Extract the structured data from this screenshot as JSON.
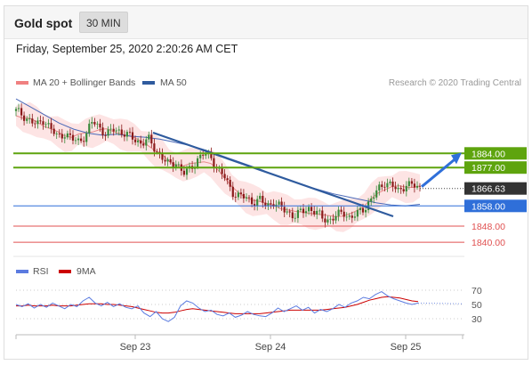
{
  "header": {
    "title": "Gold spot",
    "timeframe": "30 MIN",
    "timestamp": "Friday, September 25, 2020 2:20:26 AM CET"
  },
  "legend": {
    "items": [
      {
        "label": "MA 20 + Bollinger Bands",
        "color": "#f08080"
      },
      {
        "label": "MA 50",
        "color": "#2f5b9e"
      }
    ],
    "credit": "Research © 2020 Trading Central"
  },
  "rsi_legend": {
    "items": [
      {
        "label": "RSI",
        "color": "#5b7be0"
      },
      {
        "label": "9MA",
        "color": "#cc0000"
      }
    ]
  },
  "colors": {
    "resistance": "#5ea40e",
    "pivot": "#2f6fd9",
    "support": "#e05050",
    "candle_up": "#3a8a3a",
    "candle_down": "#8b1a1a",
    "bands_fill": "#fde4e4",
    "last_price_bg": "#333333"
  },
  "chart_data": [
    {
      "type": "candlestick",
      "title": "",
      "x_ticks": [
        "Sep 23",
        "Sep 24",
        "Sep 25"
      ],
      "y_range": [
        1833,
        1915
      ],
      "levels": [
        {
          "label": "1884.00",
          "value": 1884.0,
          "kind": "resistance"
        },
        {
          "label": "1877.00",
          "value": 1877.0,
          "kind": "resistance"
        },
        {
          "label": "1858.00",
          "value": 1858.0,
          "kind": "pivot"
        },
        {
          "label": "1848.00",
          "value": 1848.0,
          "kind": "support"
        },
        {
          "label": "1840.00",
          "value": 1840.0,
          "kind": "support"
        }
      ],
      "last_price": {
        "label": "1866.63",
        "value": 1866.63
      },
      "series": [
        {
          "name": "MA 20 + Bollinger Bands"
        },
        {
          "name": "MA 50"
        }
      ],
      "close_path": [
        1905,
        1903,
        1900,
        1898,
        1901,
        1896,
        1892,
        1894,
        1891,
        1890,
        1893,
        1900,
        1897,
        1893,
        1896,
        1895,
        1893,
        1891,
        1889,
        1891,
        1886,
        1882,
        1878,
        1880,
        1874,
        1876,
        1881,
        1884,
        1882,
        1876,
        1872,
        1865,
        1863,
        1862,
        1860,
        1861,
        1858,
        1860,
        1857,
        1855,
        1853,
        1855,
        1857,
        1855,
        1852,
        1851,
        1853,
        1855,
        1852,
        1854,
        1857,
        1861,
        1866,
        1870,
        1868,
        1865,
        1869,
        1868,
        1866.6
      ],
      "ma50_path": [
        1911,
        1907,
        1903,
        1899,
        1896,
        1894,
        1893,
        1893.5,
        1892.5,
        1892,
        1891,
        1889.5,
        1888,
        1886,
        1883.5,
        1881,
        1878.5,
        1876,
        1873,
        1870.5,
        1868,
        1866,
        1864,
        1862.5,
        1861,
        1859.5,
        1858.5,
        1858,
        1858.8
      ],
      "arrow": {
        "from": 1867.5,
        "to": 1884,
        "direction": "up"
      }
    },
    {
      "type": "line",
      "title": "",
      "y_ticks": [
        70,
        50,
        30
      ],
      "y_range": [
        10,
        80
      ],
      "series": [
        {
          "name": "RSI",
          "values": [
            50,
            47,
            51,
            45,
            50,
            46,
            52,
            48,
            44,
            50,
            47,
            55,
            60,
            52,
            48,
            53,
            47,
            51,
            46,
            44,
            48,
            38,
            33,
            40,
            30,
            26,
            32,
            48,
            55,
            52,
            45,
            40,
            42,
            36,
            34,
            38,
            32,
            35,
            40,
            36,
            34,
            33,
            38,
            45,
            40,
            44,
            48,
            42,
            46,
            38,
            43,
            40,
            44,
            50,
            46,
            52,
            55,
            60,
            58,
            64,
            68,
            62,
            58,
            55,
            52,
            50,
            52
          ]
        },
        {
          "name": "9MA",
          "values": [
            48,
            48,
            49,
            48,
            48,
            48,
            49,
            48,
            48,
            48,
            49,
            50,
            51,
            51,
            51,
            50,
            50,
            49,
            48,
            47,
            45,
            43,
            41,
            39,
            38,
            38,
            39,
            41,
            43,
            44,
            43,
            42,
            41,
            40,
            39,
            38,
            37,
            37,
            37,
            37,
            37,
            38,
            39,
            40,
            41,
            42,
            42,
            42,
            42,
            42,
            42,
            43,
            44,
            45,
            46,
            48,
            50,
            53,
            56,
            58,
            60,
            61,
            60,
            59,
            57,
            55,
            54
          ]
        }
      ]
    }
  ]
}
